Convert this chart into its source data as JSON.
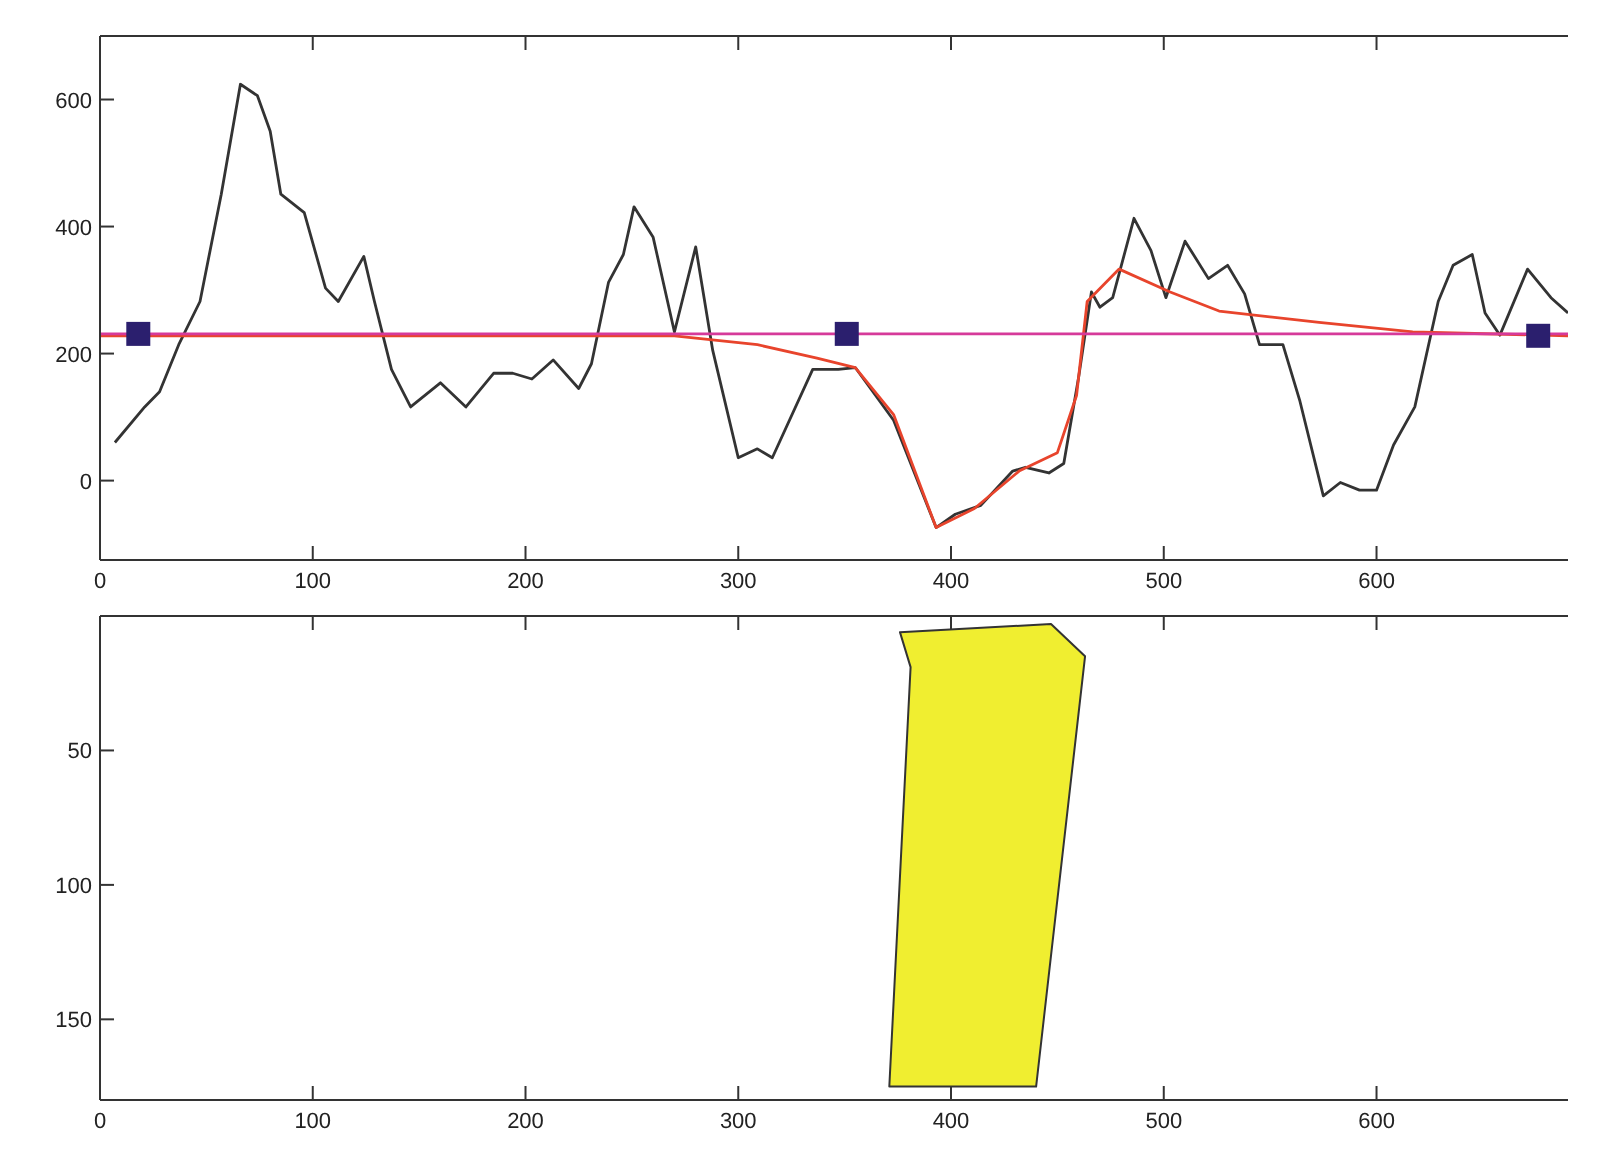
{
  "chart_data": [
    {
      "type": "line",
      "xlim": [
        0,
        690
      ],
      "ylim": [
        -125,
        700
      ],
      "xticks": [
        0,
        100,
        200,
        300,
        400,
        500,
        600
      ],
      "yticks": [
        0,
        200,
        400,
        600
      ],
      "grid": false,
      "series": [
        {
          "color": "#333333",
          "x": [
            7,
            21,
            28,
            37,
            47,
            57,
            66,
            74,
            80,
            85,
            96,
            106,
            112,
            124,
            129,
            137,
            146,
            160,
            172,
            185,
            194,
            203,
            213,
            225,
            231,
            239,
            246,
            251,
            260,
            270,
            280,
            288,
            300,
            309,
            316,
            335,
            347,
            355,
            373,
            393,
            402,
            414,
            429,
            435,
            446,
            453,
            460,
            466,
            470,
            476,
            486,
            494,
            501,
            510,
            521,
            530,
            538,
            545,
            556,
            564,
            575,
            583,
            592,
            600,
            608,
            618,
            629,
            636,
            645,
            651,
            658,
            671,
            682,
            690
          ],
          "values": [
            60,
            116,
            140,
            214,
            282,
            451,
            624,
            606,
            550,
            451,
            422,
            303,
            282,
            353,
            282,
            175,
            116,
            154,
            116,
            169,
            169,
            160,
            190,
            145,
            184,
            312,
            356,
            431,
            383,
            234,
            368,
            205,
            36,
            50,
            36,
            175,
            175,
            178,
            95,
            -74,
            -53,
            -39,
            15,
            21,
            12,
            27,
            163,
            297,
            273,
            288,
            413,
            362,
            288,
            377,
            318,
            339,
            294,
            214,
            214,
            125,
            -24,
            -3,
            -15,
            -15,
            56,
            116,
            282,
            339,
            356,
            264,
            229,
            333,
            288,
            264
          ]
        },
        {
          "color": "#e8442c",
          "x": [
            0,
            270,
            309,
            337,
            355,
            373,
            393,
            411,
            432,
            450,
            459,
            464,
            479,
            503,
            526,
            573,
            617,
            690
          ],
          "values": [
            228,
            228,
            214,
            193,
            178,
            104,
            -74,
            -44,
            15,
            44,
            134,
            282,
            333,
            297,
            267,
            249,
            234,
            228
          ]
        },
        {
          "color": "#d63a9a",
          "x": [
            0,
            690
          ],
          "values": [
            231,
            231
          ]
        },
        {
          "type": "scatter",
          "marker": "square",
          "color": "#2b1f6e",
          "x": [
            18,
            351,
            676
          ],
          "values": [
            231,
            231,
            228
          ]
        }
      ]
    },
    {
      "type": "area",
      "xlim": [
        0,
        690
      ],
      "ylim": [
        180,
        0
      ],
      "xticks": [
        0,
        100,
        200,
        300,
        400,
        500,
        600
      ],
      "yticks": [
        50,
        100,
        150
      ],
      "grid": false,
      "series": [
        {
          "color": "#f0ee30",
          "x": [
            376,
            447,
            463,
            440,
            371,
            381
          ],
          "values": [
            6,
            3,
            15,
            175,
            175,
            19
          ]
        }
      ]
    }
  ]
}
